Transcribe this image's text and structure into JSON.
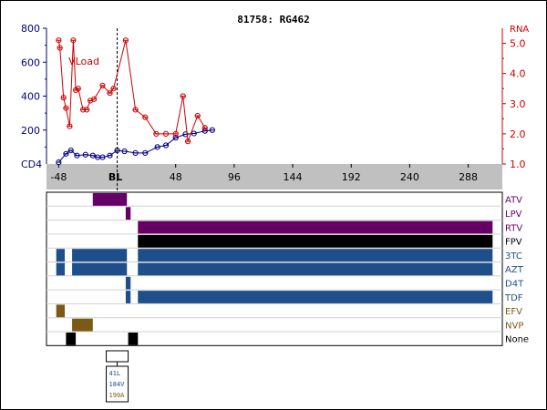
{
  "chart_data": {
    "type": "line",
    "title": "81758: RG462",
    "colors": {
      "cd4": "#000080",
      "rna": "#cc0000",
      "band": "#c0c0c0",
      "purple": "#660066",
      "blue": "#1f4f8a",
      "brown": "#7a5a14",
      "black": "#000000"
    },
    "x_axis": {
      "range": [
        -58,
        316
      ],
      "ticks": [
        -48,
        96,
        144,
        192,
        240,
        288
      ],
      "tick_labels": [
        "-48",
        "96",
        "144",
        "192",
        "240",
        "288"
      ],
      "baseline": 0,
      "baseline_label": "BL",
      "extra_tick": 48,
      "extra_tick_label": "48"
    },
    "cd4_axis": {
      "label": "CD4",
      "range": [
        0,
        800
      ],
      "ticks": [
        200,
        400,
        600,
        800
      ],
      "tick_labels": [
        "200",
        "400",
        "600",
        "800"
      ]
    },
    "rna_axis": {
      "label": "RNA",
      "range": [
        1.0,
        5.5
      ],
      "ticks": [
        1.0,
        2.0,
        3.0,
        4.0,
        5.0
      ],
      "tick_labels": [
        "1.0",
        "2.0",
        "3.0",
        "4.0",
        "5.0"
      ]
    },
    "series": [
      {
        "name": "CD4",
        "axis": "cd4",
        "x": [
          -48,
          -42,
          -38,
          -33,
          -26,
          -20,
          -16,
          -12,
          -6,
          0,
          6,
          15,
          23,
          33,
          40,
          48,
          56,
          63,
          72,
          78
        ],
        "y": [
          10,
          60,
          80,
          50,
          55,
          50,
          40,
          40,
          50,
          80,
          75,
          65,
          65,
          100,
          110,
          155,
          175,
          180,
          195,
          200
        ]
      },
      {
        "name": "VLoad",
        "axis": "rna",
        "x": [
          -48,
          -47,
          -44,
          -42,
          -39,
          -36,
          -34,
          -32,
          -28,
          -25,
          -22,
          -19,
          -12,
          -6,
          -3,
          7,
          15,
          23,
          32,
          40,
          48,
          54,
          58,
          66,
          72
        ],
        "y": [
          5.1,
          4.85,
          3.2,
          2.85,
          2.25,
          5.1,
          3.45,
          3.5,
          2.8,
          2.8,
          3.1,
          3.15,
          3.6,
          3.35,
          3.5,
          5.1,
          2.8,
          2.55,
          2.0,
          2.0,
          2.0,
          3.25,
          1.75,
          2.6,
          2.2
        ]
      }
    ],
    "annotation": "VLoad",
    "drugs": {
      "rows": [
        "ATV",
        "LPV",
        "RTV",
        "FPV",
        "3TC",
        "AZT",
        "D4T",
        "TDF",
        "EFV",
        "NVP",
        "None"
      ],
      "row_colors": [
        "purple",
        "purple",
        "purple",
        "black",
        "blue",
        "blue",
        "blue",
        "blue",
        "brown",
        "brown",
        "black"
      ],
      "intervals": [
        {
          "drug": "ATV",
          "start": -20,
          "end": 8
        },
        {
          "drug": "LPV",
          "start": 7,
          "end": 11
        },
        {
          "drug": "RTV",
          "start": 17,
          "end": 308
        },
        {
          "drug": "FPV",
          "start": 17,
          "end": 308
        },
        {
          "drug": "3TC",
          "start": -50,
          "end": -43
        },
        {
          "drug": "3TC",
          "start": -37,
          "end": 8
        },
        {
          "drug": "3TC",
          "start": 17,
          "end": 308
        },
        {
          "drug": "AZT",
          "start": -50,
          "end": -43
        },
        {
          "drug": "AZT",
          "start": -37,
          "end": 8
        },
        {
          "drug": "AZT",
          "start": 17,
          "end": 308
        },
        {
          "drug": "D4T",
          "start": 7,
          "end": 11
        },
        {
          "drug": "TDF",
          "start": 7,
          "end": 11
        },
        {
          "drug": "TDF",
          "start": 17,
          "end": 308
        },
        {
          "drug": "EFV",
          "start": -50,
          "end": -43
        },
        {
          "drug": "NVP",
          "start": -37,
          "end": -20
        },
        {
          "drug": "None",
          "start": -42,
          "end": -34
        },
        {
          "drug": "None",
          "start": 9,
          "end": 17
        }
      ]
    },
    "mutations": {
      "labels": [
        "41L",
        "184V",
        "190A"
      ],
      "colors": [
        "blue",
        "blue",
        "brown"
      ],
      "at": 0
    }
  }
}
